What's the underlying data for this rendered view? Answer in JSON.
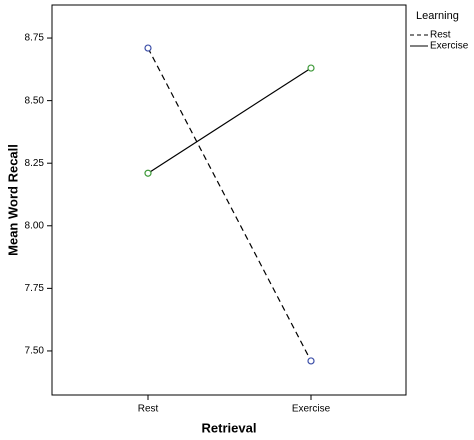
{
  "chart_data": {
    "type": "line",
    "x_label": "Retrieval",
    "y_label": "Mean Word Recall",
    "legend_title": "Learning",
    "legend": "right",
    "categories": [
      "Rest",
      "Exercise"
    ],
    "series": [
      {
        "name": "Rest",
        "color": "#000000",
        "marker_color": "#3c4fa8",
        "dash": true,
        "values": [
          8.71,
          7.46
        ]
      },
      {
        "name": "Exercise",
        "color": "#000000",
        "marker_color": "#3f9a3a",
        "dash": false,
        "values": [
          8.21,
          8.63
        ]
      }
    ],
    "ylim": [
      7.324,
      8.882
    ],
    "yticks": [
      {
        "value": 7.5,
        "label": "7.50"
      },
      7.75,
      {
        "value": 8,
        "label": "8.00"
      },
      8.25,
      {
        "value": 8.5,
        "label": "8.50"
      },
      8.75
    ]
  }
}
